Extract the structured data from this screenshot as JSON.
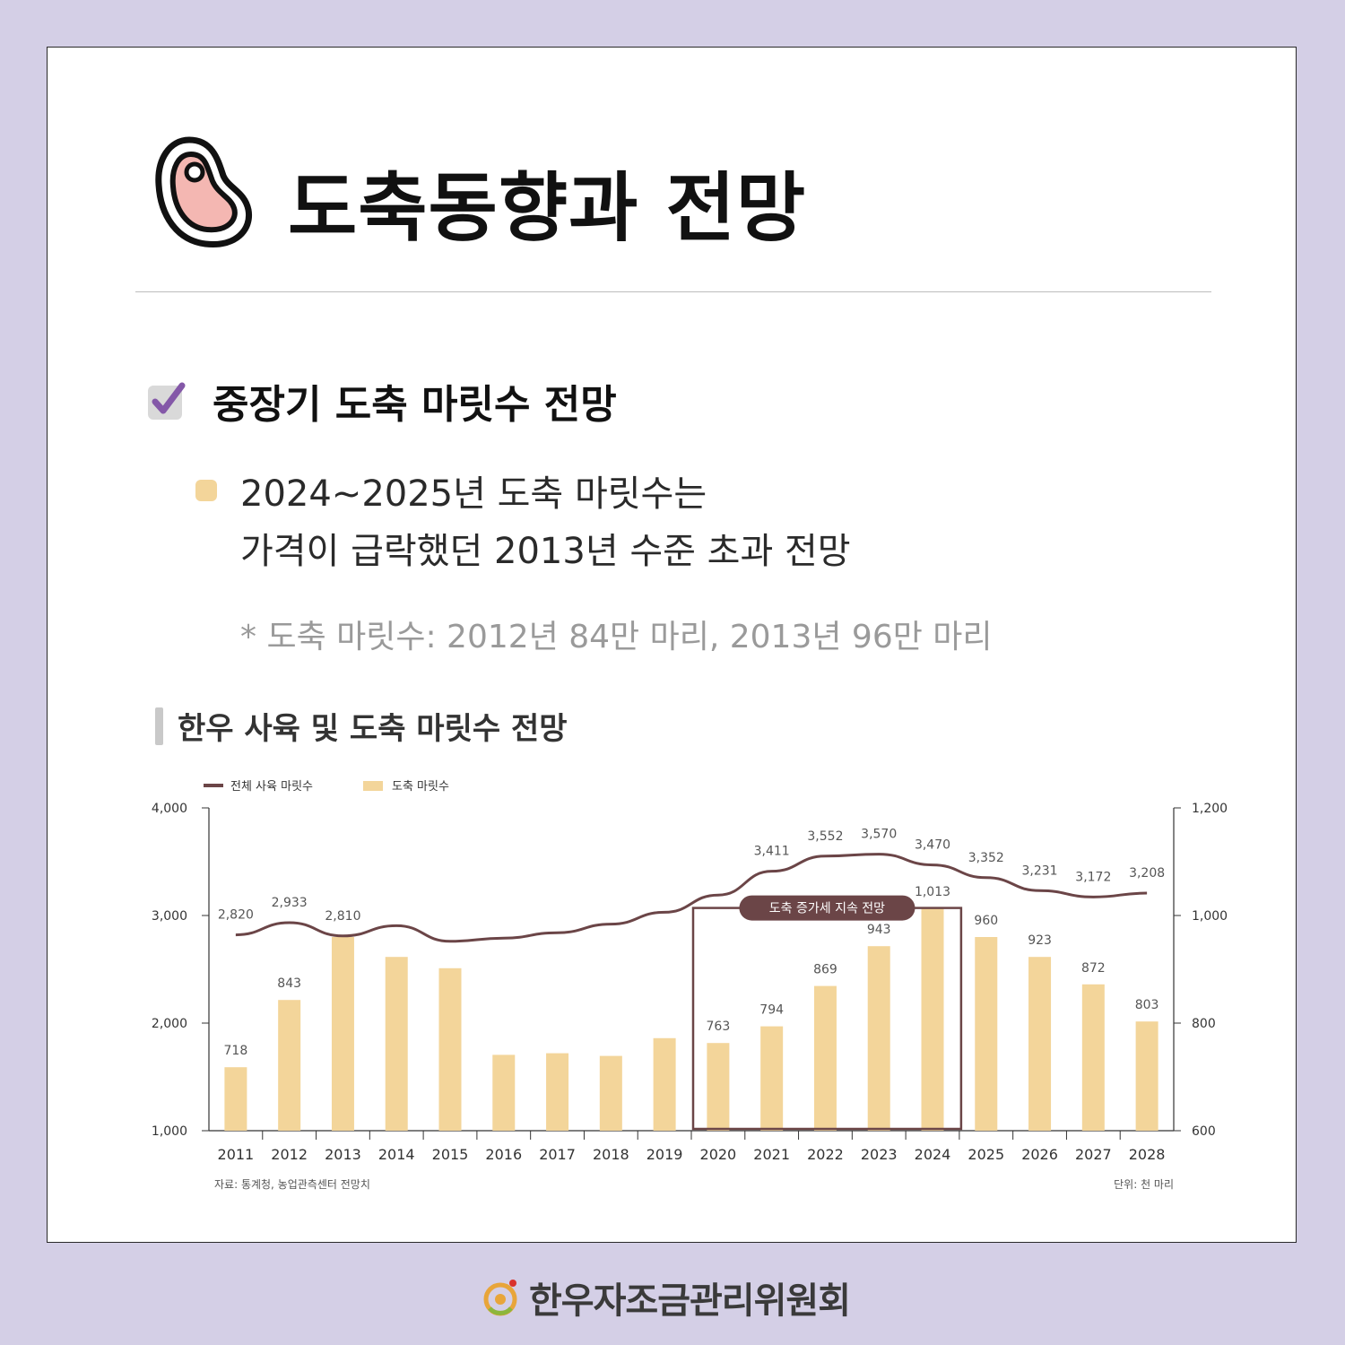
{
  "header": {
    "title": "도축동향과 전망",
    "icon": "meat-icon"
  },
  "section": {
    "title": "중장기 도축 마릿수 전망",
    "icon": "checkbox-icon",
    "bullet_line1": "2024~2025년 도축 마릿수는",
    "bullet_line2": "가격이 급락했던 2013년 수준 초과 전망",
    "note": "* 도축 마릿수: 2012년 84만 마리, 2013년 96만 마리"
  },
  "chart_heading": "한우 사육 및 도축 마릿수 전망",
  "chart_data": {
    "type": "bar",
    "categories": [
      "2011",
      "2012",
      "2013",
      "2014",
      "2015",
      "2016",
      "2017",
      "2018",
      "2019",
      "2020",
      "2021",
      "2022",
      "2023",
      "2024",
      "2025",
      "2026",
      "2027",
      "2028"
    ],
    "series": [
      {
        "name": "전체 사육 마릿수",
        "type": "line",
        "axis": "left",
        "color": "#6b4547",
        "values": [
          2820,
          2933,
          2810,
          2905,
          2760,
          2790,
          2840,
          2920,
          3030,
          3190,
          3411,
          3552,
          3570,
          3470,
          3352,
          3231,
          3172,
          3208
        ],
        "labels": [
          "2,820",
          "2,933",
          "2,810",
          "",
          "",
          "",
          "",
          "",
          "",
          "",
          "3,411",
          "3,552",
          "3,570",
          "3,470",
          "3,352",
          "3,231",
          "3,172",
          "3,208"
        ]
      },
      {
        "name": "도축 마릿수",
        "type": "bar",
        "axis": "right",
        "color": "#f3d59a",
        "values": [
          718,
          843,
          960,
          923,
          902,
          741,
          744,
          739,
          772,
          763,
          794,
          869,
          943,
          1013,
          960,
          923,
          872,
          803
        ],
        "labels": [
          "718",
          "843",
          "",
          "",
          "",
          "",
          "",
          "",
          "",
          "763",
          "794",
          "869",
          "943",
          "1,013",
          "960",
          "923",
          "872",
          "803"
        ]
      }
    ],
    "y_left": {
      "ticks": [
        "4,000",
        "3,000",
        "2,000",
        "1,000"
      ],
      "tick_values": [
        4000,
        3000,
        2000,
        1000
      ],
      "range": [
        1000,
        4000
      ]
    },
    "y_right": {
      "ticks": [
        "1,200",
        "1,000",
        "800",
        "600"
      ],
      "tick_values": [
        1200,
        1000,
        800,
        600
      ],
      "range": [
        600,
        1200
      ]
    },
    "highlight": {
      "label": "도축 증가세 지속 전망",
      "from": "2020",
      "to": "2024"
    },
    "source": "자료: 통계청, 농업관측센터 전망치",
    "unit": "단위: 천 마리",
    "legend_position": "top-left",
    "grid": false
  },
  "footer": {
    "org": "한우자조금관리위원회",
    "icon": "hanwoo-logo-icon"
  }
}
